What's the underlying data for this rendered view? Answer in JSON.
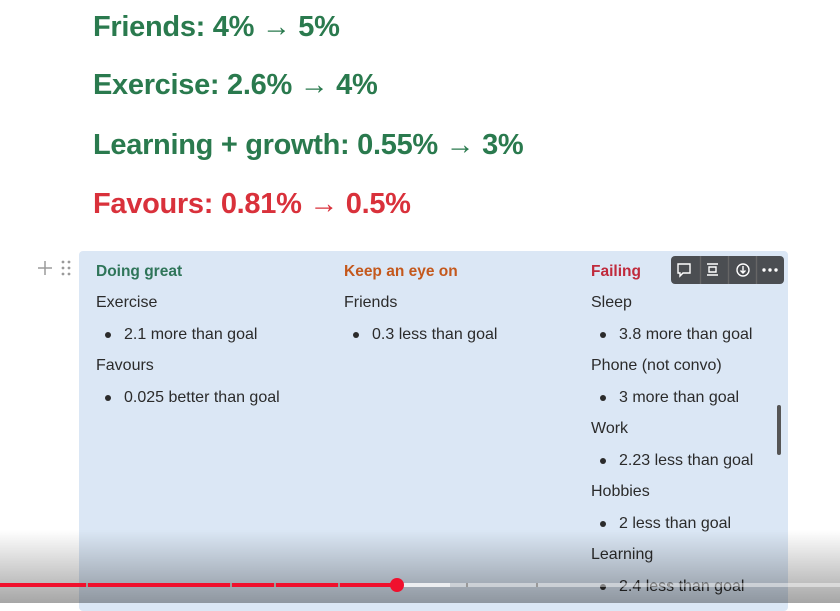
{
  "headings": [
    {
      "text": "Friends: 4% → 5%",
      "color": "#2a7a4e"
    },
    {
      "text": "Exercise: 2.6% → 4%",
      "color": "#2a7a4e"
    },
    {
      "text": "Learning + growth: 0.55% → 3%",
      "color": "#2a7a4e"
    },
    {
      "text": "Favours: 0.81% → 0.5%",
      "color": "#d9313b"
    }
  ],
  "columns": [
    {
      "title": "Doing great",
      "color": "#2f7559",
      "groups": [
        {
          "label": "Exercise",
          "bullets": [
            "2.1 more than goal"
          ]
        },
        {
          "label": "Favours",
          "bullets": [
            "0.025 better than goal"
          ]
        }
      ]
    },
    {
      "title": "Keep an eye on",
      "color": "#c4581c",
      "groups": [
        {
          "label": "Friends",
          "bullets": [
            "0.3 less than goal"
          ]
        }
      ]
    },
    {
      "title": "Failing",
      "color": "#c02a3c",
      "groups": [
        {
          "label": "Sleep",
          "bullets": [
            "3.8 more than goal"
          ]
        },
        {
          "label": "Phone (not convo)",
          "bullets": [
            "3 more than goal"
          ]
        },
        {
          "label": "Work",
          "bullets": [
            "2.23 less than goal"
          ]
        },
        {
          "label": "Hobbies",
          "bullets": [
            "2 less than goal"
          ]
        },
        {
          "label": "Learning",
          "bullets": [
            "2.4 less than goal"
          ]
        }
      ]
    }
  ]
}
